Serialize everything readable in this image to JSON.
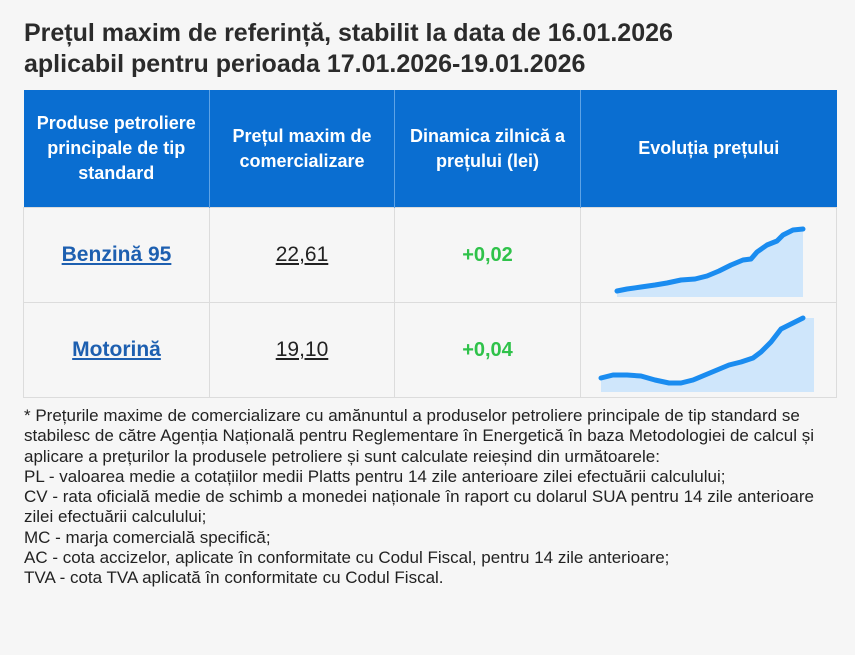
{
  "title": {
    "line1": "Prețul maxim de referință, stabilit la data de 16.01.2026",
    "line2": "aplicabil pentru perioada 17.01.2026-19.01.2026"
  },
  "table": {
    "headers": [
      "Produse petroliere principale de tip standard",
      "Prețul maxim de comercializare",
      "Dinamica zilnică a prețului (lei)",
      "Evoluția prețului"
    ],
    "rows": [
      {
        "product": "Benzină 95",
        "price": "22,61",
        "delta": "+0,02",
        "trend": "benzina-trend-sparkline"
      },
      {
        "product": "Motorină",
        "price": "19,10",
        "delta": "+0,04",
        "trend": "motorina-trend-sparkline"
      }
    ]
  },
  "colors": {
    "header_bg": "#0a6ed1",
    "link": "#1d5fb0",
    "delta_positive": "#2fc24a",
    "sparkline_line": "#1a8cf0",
    "sparkline_fill": "#cfe6fb"
  },
  "notes": [
    "* Prețurile maxime de comercializare cu amănuntul a produselor petroliere principale de tip standard se stabilesc de către Agenția Națională pentru Reglementare în Energetică în baza Metodologiei de calcul și aplicare a prețurilor la produsele petroliere și sunt calculate reieșind din următoarele:",
    "PL - valoarea medie a cotațiilor medii Platts pentru 14 zile anterioare zilei efectuării calculului;",
    "CV - rata oficială medie de schimb a monedei naționale în raport cu dolarul SUA pentru 14 zile anterioare zilei efectuării calculului;",
    "MC - marja comercială specifică;",
    "AC - cota accizelor, aplicate în conformitate cu Codul Fiscal, pentru 14 zile anterioare;",
    "TVA - cota TVA aplicată în conformitate cu Codul Fiscal."
  ]
}
